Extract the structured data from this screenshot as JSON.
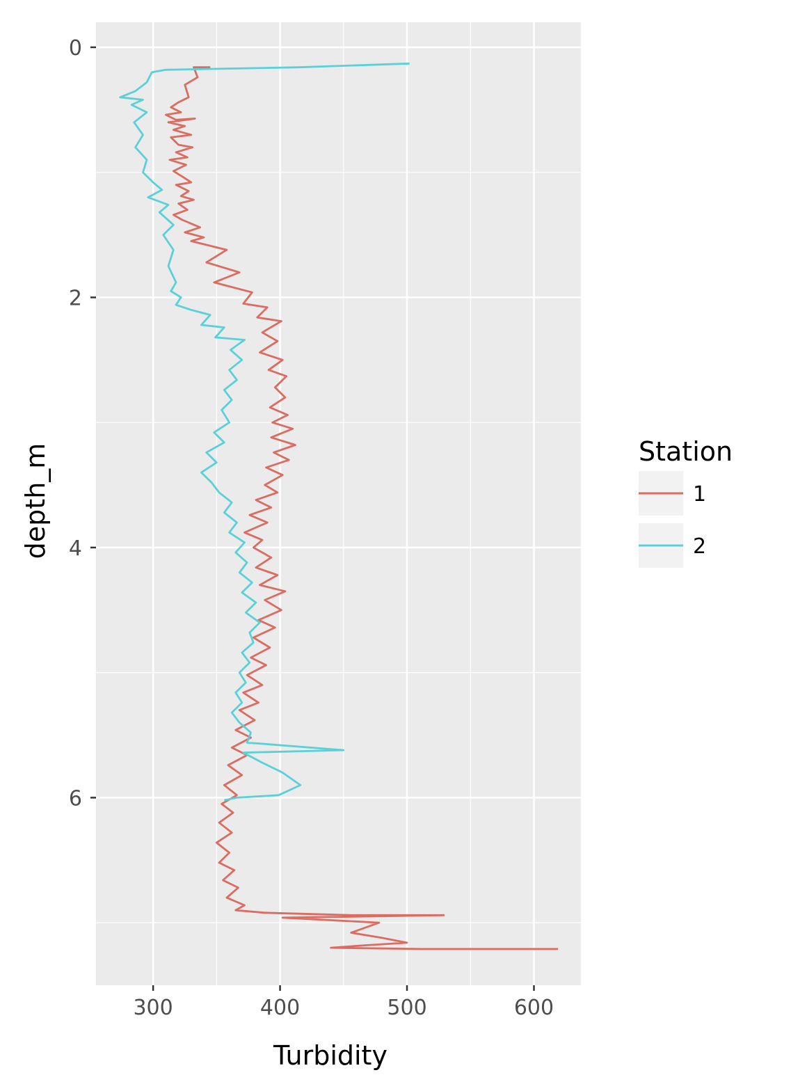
{
  "chart_data": {
    "type": "line",
    "title": "",
    "xlabel": "Turbidity",
    "ylabel": "depth_m",
    "xlim": [
      255,
      637
    ],
    "ylim": [
      -0.2,
      7.5
    ],
    "y_reversed": true,
    "x_ticks": [
      300,
      400,
      500,
      600
    ],
    "x_tick_labels": [
      "300",
      "400",
      "500",
      "600"
    ],
    "y_ticks": [
      0,
      2,
      4,
      6
    ],
    "y_tick_labels": [
      "0",
      "2",
      "4",
      "6"
    ],
    "grid": true,
    "legend": {
      "title": "Station",
      "position": "right"
    },
    "series": [
      {
        "name": "1",
        "color": "#DB6C62",
        "points": [
          [
            345,
            0.16
          ],
          [
            332,
            0.16
          ],
          [
            335,
            0.24
          ],
          [
            325,
            0.3
          ],
          [
            328,
            0.4
          ],
          [
            320,
            0.44
          ],
          [
            314,
            0.48
          ],
          [
            322,
            0.52
          ],
          [
            310,
            0.54
          ],
          [
            318,
            0.58
          ],
          [
            333,
            0.57
          ],
          [
            312,
            0.6
          ],
          [
            325,
            0.63
          ],
          [
            316,
            0.66
          ],
          [
            330,
            0.7
          ],
          [
            314,
            0.72
          ],
          [
            320,
            0.78
          ],
          [
            331,
            0.8
          ],
          [
            318,
            0.84
          ],
          [
            327,
            0.88
          ],
          [
            313,
            0.9
          ],
          [
            326,
            0.94
          ],
          [
            316,
            0.99
          ],
          [
            324,
            1.04
          ],
          [
            330,
            1.08
          ],
          [
            318,
            1.1
          ],
          [
            328,
            1.15
          ],
          [
            322,
            1.19
          ],
          [
            332,
            1.22
          ],
          [
            320,
            1.25
          ],
          [
            327,
            1.3
          ],
          [
            316,
            1.34
          ],
          [
            323,
            1.38
          ],
          [
            337,
            1.44
          ],
          [
            325,
            1.48
          ],
          [
            340,
            1.52
          ],
          [
            330,
            1.55
          ],
          [
            358,
            1.62
          ],
          [
            342,
            1.72
          ],
          [
            368,
            1.8
          ],
          [
            348,
            1.88
          ],
          [
            378,
            1.96
          ],
          [
            371,
            2.05
          ],
          [
            390,
            2.08
          ],
          [
            382,
            2.16
          ],
          [
            401,
            2.19
          ],
          [
            386,
            2.28
          ],
          [
            398,
            2.35
          ],
          [
            384,
            2.44
          ],
          [
            402,
            2.5
          ],
          [
            391,
            2.58
          ],
          [
            405,
            2.63
          ],
          [
            396,
            2.72
          ],
          [
            404,
            2.8
          ],
          [
            392,
            2.88
          ],
          [
            406,
            2.94
          ],
          [
            394,
            3.0
          ],
          [
            410,
            3.05
          ],
          [
            393,
            3.12
          ],
          [
            412,
            3.18
          ],
          [
            395,
            3.24
          ],
          [
            407,
            3.3
          ],
          [
            389,
            3.36
          ],
          [
            402,
            3.42
          ],
          [
            388,
            3.5
          ],
          [
            398,
            3.56
          ],
          [
            381,
            3.62
          ],
          [
            393,
            3.68
          ],
          [
            376,
            3.74
          ],
          [
            390,
            3.8
          ],
          [
            372,
            3.88
          ],
          [
            386,
            3.94
          ],
          [
            379,
            4.0
          ],
          [
            393,
            4.08
          ],
          [
            381,
            4.16
          ],
          [
            398,
            4.22
          ],
          [
            384,
            4.3
          ],
          [
            404,
            4.35
          ],
          [
            388,
            4.42
          ],
          [
            401,
            4.5
          ],
          [
            383,
            4.58
          ],
          [
            396,
            4.64
          ],
          [
            379,
            4.72
          ],
          [
            392,
            4.8
          ],
          [
            377,
            4.88
          ],
          [
            389,
            4.94
          ],
          [
            374,
            5.02
          ],
          [
            386,
            5.1
          ],
          [
            371,
            5.16
          ],
          [
            383,
            5.24
          ],
          [
            368,
            5.3
          ],
          [
            380,
            5.38
          ],
          [
            365,
            5.46
          ],
          [
            377,
            5.52
          ],
          [
            362,
            5.6
          ],
          [
            374,
            5.66
          ],
          [
            359,
            5.74
          ],
          [
            370,
            5.82
          ],
          [
            356,
            5.9
          ],
          [
            366,
            5.98
          ],
          [
            354,
            6.05
          ],
          [
            363,
            6.12
          ],
          [
            352,
            6.2
          ],
          [
            362,
            6.28
          ],
          [
            350,
            6.36
          ],
          [
            360,
            6.44
          ],
          [
            352,
            6.52
          ],
          [
            364,
            6.58
          ],
          [
            355,
            6.66
          ],
          [
            367,
            6.72
          ],
          [
            358,
            6.8
          ],
          [
            372,
            6.86
          ],
          [
            365,
            6.9
          ],
          [
            388,
            6.92
          ],
          [
            456,
            6.94
          ],
          [
            529,
            6.94
          ],
          [
            402,
            6.96
          ],
          [
            478,
            7.0
          ],
          [
            456,
            7.08
          ],
          [
            480,
            7.12
          ],
          [
            500,
            7.16
          ],
          [
            468,
            7.18
          ],
          [
            440,
            7.2
          ],
          [
            511,
            7.21
          ],
          [
            619,
            7.21
          ]
        ]
      },
      {
        "name": "2",
        "color": "#5BD0D7",
        "points": [
          [
            502,
            0.13
          ],
          [
            415,
            0.16
          ],
          [
            310,
            0.18
          ],
          [
            299,
            0.2
          ],
          [
            295,
            0.28
          ],
          [
            286,
            0.35
          ],
          [
            274,
            0.4
          ],
          [
            292,
            0.42
          ],
          [
            283,
            0.46
          ],
          [
            295,
            0.52
          ],
          [
            285,
            0.6
          ],
          [
            292,
            0.7
          ],
          [
            286,
            0.8
          ],
          [
            295,
            0.9
          ],
          [
            292,
            1.0
          ],
          [
            300,
            1.08
          ],
          [
            307,
            1.14
          ],
          [
            296,
            1.2
          ],
          [
            312,
            1.26
          ],
          [
            305,
            1.32
          ],
          [
            316,
            1.42
          ],
          [
            308,
            1.5
          ],
          [
            316,
            1.62
          ],
          [
            312,
            1.75
          ],
          [
            318,
            1.88
          ],
          [
            314,
            1.95
          ],
          [
            322,
            2.0
          ],
          [
            318,
            2.06
          ],
          [
            330,
            2.1
          ],
          [
            345,
            2.14
          ],
          [
            338,
            2.22
          ],
          [
            356,
            2.24
          ],
          [
            349,
            2.32
          ],
          [
            372,
            2.34
          ],
          [
            361,
            2.42
          ],
          [
            370,
            2.5
          ],
          [
            360,
            2.58
          ],
          [
            366,
            2.66
          ],
          [
            356,
            2.74
          ],
          [
            362,
            2.82
          ],
          [
            354,
            2.9
          ],
          [
            360,
            3.0
          ],
          [
            348,
            3.08
          ],
          [
            356,
            3.16
          ],
          [
            342,
            3.24
          ],
          [
            350,
            3.32
          ],
          [
            338,
            3.4
          ],
          [
            346,
            3.48
          ],
          [
            352,
            3.56
          ],
          [
            362,
            3.64
          ],
          [
            356,
            3.72
          ],
          [
            366,
            3.8
          ],
          [
            360,
            3.88
          ],
          [
            372,
            3.96
          ],
          [
            365,
            4.04
          ],
          [
            374,
            4.12
          ],
          [
            368,
            4.2
          ],
          [
            378,
            4.28
          ],
          [
            370,
            4.36
          ],
          [
            381,
            4.44
          ],
          [
            373,
            4.52
          ],
          [
            384,
            4.6
          ],
          [
            376,
            4.68
          ],
          [
            379,
            4.76
          ],
          [
            370,
            4.84
          ],
          [
            376,
            4.92
          ],
          [
            368,
            5.0
          ],
          [
            373,
            5.08
          ],
          [
            365,
            5.16
          ],
          [
            370,
            5.24
          ],
          [
            362,
            5.32
          ],
          [
            368,
            5.4
          ],
          [
            377,
            5.48
          ],
          [
            374,
            5.56
          ],
          [
            450,
            5.62
          ],
          [
            371,
            5.64
          ],
          [
            386,
            5.72
          ],
          [
            402,
            5.8
          ],
          [
            416,
            5.9
          ],
          [
            399,
            5.98
          ],
          [
            366,
            6.0
          ],
          [
            356,
            6.02
          ]
        ]
      }
    ]
  }
}
